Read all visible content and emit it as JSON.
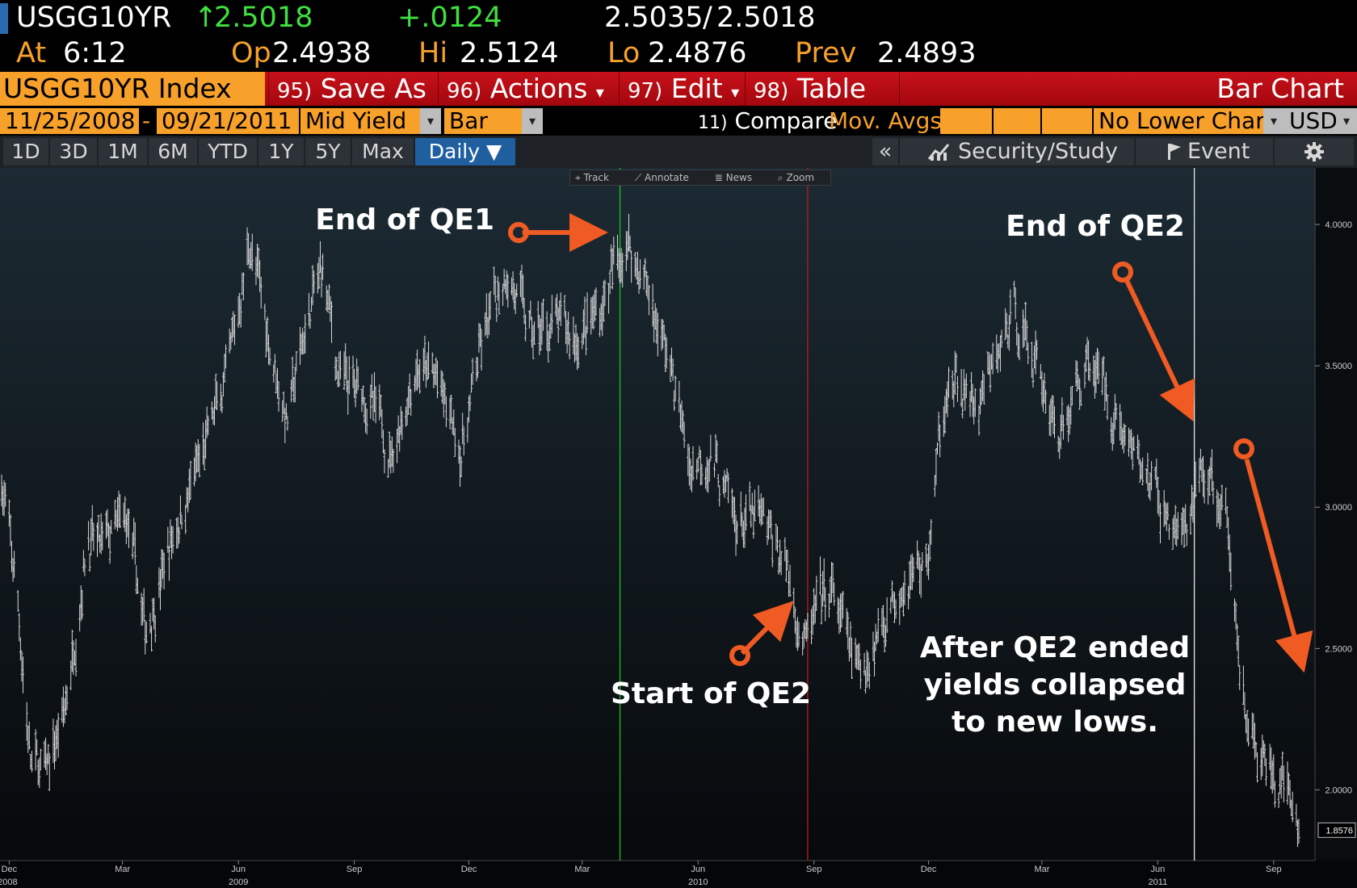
{
  "quote": {
    "ticker": "USGG10YR",
    "arrow": "↑",
    "last": "2.5018",
    "change": "+.0124",
    "bid": "2.5035",
    "slash": "/",
    "ask": "2.5018",
    "at_label": "At",
    "time": "6:12",
    "open_label": "Op",
    "open": "2.4938",
    "high_label": "Hi",
    "high": "2.5124",
    "low_label": "Lo",
    "low": "2.4876",
    "prev_label": "Prev",
    "prev": "2.4893"
  },
  "toolbar": {
    "index_name": "USGG10YR Index",
    "save_num": "95)",
    "save_label": "Save As",
    "actions_num": "96)",
    "actions_label": "Actions",
    "edit_num": "97)",
    "edit_label": "Edit",
    "table_num": "98)",
    "table_label": "Table",
    "title": "Bar Chart",
    "dropdown_glyph": "▾"
  },
  "params": {
    "start_date": "11/25/2008",
    "sep": "-",
    "end_date": "09/21/2011",
    "field": "Mid Yield",
    "chart_style": "Bar",
    "compare_num": "11)",
    "compare_label": "Compare",
    "mov_avgs": "Mov. Avgs",
    "lower_chart": "No Lower Chart",
    "currency": "USD"
  },
  "periods": [
    "1D",
    "3D",
    "1M",
    "6M",
    "YTD",
    "1Y",
    "5Y",
    "Max"
  ],
  "frequency": "Daily ▼",
  "right_tools": {
    "collapse": "«",
    "security_study": "Security/Study",
    "event": "Event"
  },
  "chart_tools": [
    "Track",
    "Annotate",
    "News",
    "Zoom"
  ],
  "colors": {
    "accent_orange": "#f7a02a",
    "toolbar_red": "#b80c14",
    "up_green": "#3fe03f",
    "annotation_arrow": "#f05a23",
    "qe1_line": "#1fc01f",
    "qe2_start_line": "#c01818",
    "qe2_end_line": "#e8e8e8"
  },
  "chart_data": {
    "type": "bar",
    "subtype": "ohlc",
    "ylim": [
      1.75,
      4.2
    ],
    "yticks": [
      "4.0000",
      "3.5000",
      "3.0000",
      "2.5000",
      "2.0000"
    ],
    "ytick_values": [
      4.0,
      3.5,
      3.0,
      2.5,
      2.0
    ],
    "last_value_label": "1.8576",
    "last_value": 1.8576,
    "x_range": [
      "2008-11-25",
      "2011-09-21"
    ],
    "month_ticks": [
      {
        "label": "Dec",
        "date": "2008-12-01",
        "year": "2008"
      },
      {
        "label": "Mar",
        "date": "2009-03-01"
      },
      {
        "label": "Jun",
        "date": "2009-06-01",
        "year": "2009"
      },
      {
        "label": "Sep",
        "date": "2009-09-01"
      },
      {
        "label": "Dec",
        "date": "2009-12-01"
      },
      {
        "label": "Mar",
        "date": "2010-03-01"
      },
      {
        "label": "Jun",
        "date": "2010-06-01",
        "year": "2010"
      },
      {
        "label": "Sep",
        "date": "2010-09-01"
      },
      {
        "label": "Dec",
        "date": "2010-12-01"
      },
      {
        "label": "Mar",
        "date": "2011-03-01"
      },
      {
        "label": "Jun",
        "date": "2011-06-01",
        "year": "2011"
      },
      {
        "label": "Sep",
        "date": "2011-09-01"
      }
    ],
    "series_anchors": [
      {
        "date": "2008-11-25",
        "value": 3.1
      },
      {
        "date": "2008-12-08",
        "value": 2.65
      },
      {
        "date": "2008-12-18",
        "value": 2.1
      },
      {
        "date": "2008-12-30",
        "value": 2.05
      },
      {
        "date": "2009-01-15",
        "value": 2.3
      },
      {
        "date": "2009-02-01",
        "value": 2.9
      },
      {
        "date": "2009-02-10",
        "value": 2.85
      },
      {
        "date": "2009-03-05",
        "value": 2.95
      },
      {
        "date": "2009-03-19",
        "value": 2.55
      },
      {
        "date": "2009-04-10",
        "value": 2.9
      },
      {
        "date": "2009-05-05",
        "value": 3.2
      },
      {
        "date": "2009-05-25",
        "value": 3.5
      },
      {
        "date": "2009-06-10",
        "value": 3.95
      },
      {
        "date": "2009-06-25",
        "value": 3.6
      },
      {
        "date": "2009-07-10",
        "value": 3.3
      },
      {
        "date": "2009-07-25",
        "value": 3.65
      },
      {
        "date": "2009-08-07",
        "value": 3.85
      },
      {
        "date": "2009-08-20",
        "value": 3.45
      },
      {
        "date": "2009-09-10",
        "value": 3.4
      },
      {
        "date": "2009-10-01",
        "value": 3.2
      },
      {
        "date": "2009-10-20",
        "value": 3.5
      },
      {
        "date": "2009-11-05",
        "value": 3.45
      },
      {
        "date": "2009-11-25",
        "value": 3.2
      },
      {
        "date": "2009-12-10",
        "value": 3.55
      },
      {
        "date": "2009-12-31",
        "value": 3.85
      },
      {
        "date": "2010-01-20",
        "value": 3.6
      },
      {
        "date": "2010-02-05",
        "value": 3.65
      },
      {
        "date": "2010-02-25",
        "value": 3.6
      },
      {
        "date": "2010-03-15",
        "value": 3.7
      },
      {
        "date": "2010-04-05",
        "value": 3.95
      },
      {
        "date": "2010-04-20",
        "value": 3.8
      },
      {
        "date": "2010-05-10",
        "value": 3.5
      },
      {
        "date": "2010-05-25",
        "value": 3.15
      },
      {
        "date": "2010-06-10",
        "value": 3.2
      },
      {
        "date": "2010-06-30",
        "value": 2.95
      },
      {
        "date": "2010-07-20",
        "value": 2.95
      },
      {
        "date": "2010-08-10",
        "value": 2.8
      },
      {
        "date": "2010-08-25",
        "value": 2.5
      },
      {
        "date": "2010-09-05",
        "value": 2.65
      },
      {
        "date": "2010-09-15",
        "value": 2.7
      },
      {
        "date": "2010-10-07",
        "value": 2.4
      },
      {
        "date": "2010-10-25",
        "value": 2.6
      },
      {
        "date": "2010-11-10",
        "value": 2.75
      },
      {
        "date": "2010-11-30",
        "value": 2.8
      },
      {
        "date": "2010-12-15",
        "value": 3.45
      },
      {
        "date": "2011-01-10",
        "value": 3.35
      },
      {
        "date": "2011-02-08",
        "value": 3.7
      },
      {
        "date": "2011-03-01",
        "value": 3.45
      },
      {
        "date": "2011-03-16",
        "value": 3.25
      },
      {
        "date": "2011-04-08",
        "value": 3.55
      },
      {
        "date": "2011-05-01",
        "value": 3.3
      },
      {
        "date": "2011-06-10",
        "value": 2.95
      },
      {
        "date": "2011-06-27",
        "value": 2.9
      },
      {
        "date": "2011-07-05",
        "value": 3.15
      },
      {
        "date": "2011-07-25",
        "value": 2.95
      },
      {
        "date": "2011-08-05",
        "value": 2.45
      },
      {
        "date": "2011-08-18",
        "value": 2.1
      },
      {
        "date": "2011-09-01",
        "value": 2.05
      },
      {
        "date": "2011-09-12",
        "value": 1.95
      },
      {
        "date": "2011-09-21",
        "value": 1.86
      }
    ],
    "vertical_markers": [
      {
        "date": "2010-03-31",
        "color": "#1fc01f"
      },
      {
        "date": "2010-08-27",
        "color": "#c01818"
      },
      {
        "date": "2011-06-30",
        "color": "#e8e8e8"
      }
    ],
    "annotations": [
      {
        "text": "End of QE1"
      },
      {
        "text": "Start of QE2"
      },
      {
        "text": "End of QE2"
      },
      {
        "lines": [
          "After QE2 ended",
          "yields collapsed",
          "to new lows."
        ]
      }
    ]
  }
}
